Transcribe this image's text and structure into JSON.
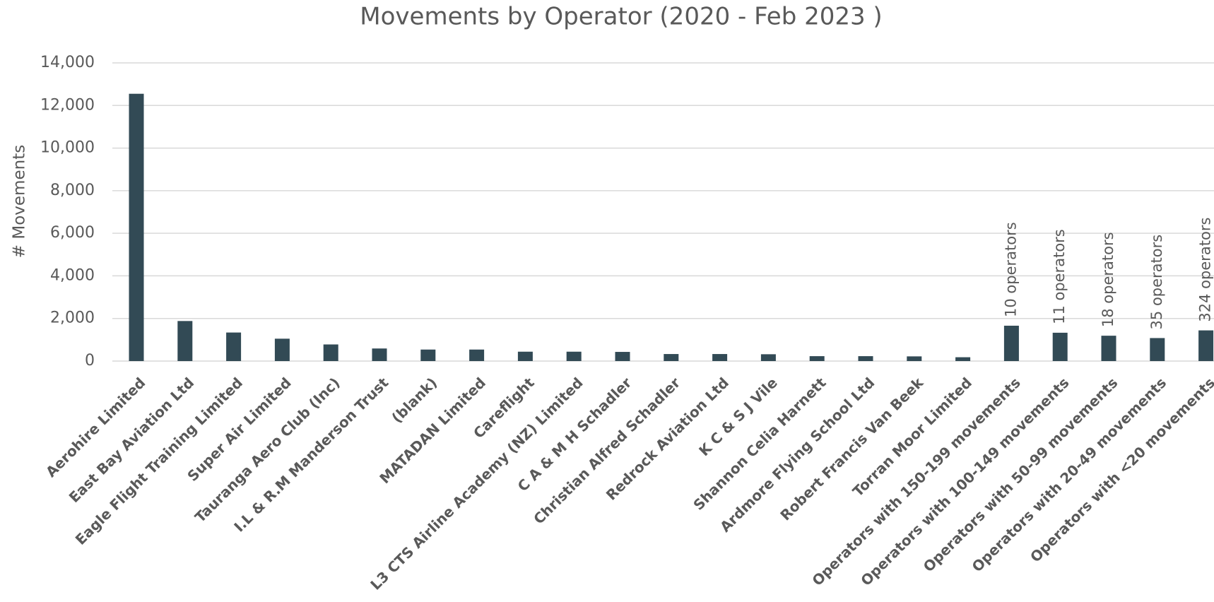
{
  "chart_data": {
    "type": "bar",
    "title": "Movements by Operator (2020 - Feb 2023 )",
    "y_label": "# Movements",
    "categories": [
      "Aerohire Limited",
      "East Bay Aviation Ltd",
      "Eagle Flight Training Limited",
      "Super Air Limited",
      "Tauranga Aero Club (Inc)",
      "I.L & R.M Manderson Trust",
      "(blank)",
      "MATADAN Limited",
      "Careflight",
      "L3 CTS Airline Academy (NZ) Limited",
      "C A & M H Schadler",
      "Christian Alfred Schadler",
      "Redrock Aviation Ltd",
      "K C & S J Vile",
      "Shannon Celia Harnett",
      "Ardmore Flying School Ltd",
      "Robert Francis Van Beek",
      "Torran Moor Limited",
      "Operators with 150-199 movements",
      "Operators with 100-149 movements",
      "Operators with 50-99 movements",
      "Operators with 20-49 movements",
      "Operators with <20 movements"
    ],
    "values": [
      12550,
      1880,
      1340,
      1050,
      780,
      590,
      540,
      540,
      440,
      440,
      430,
      330,
      330,
      320,
      230,
      230,
      220,
      180,
      1660,
      1330,
      1190,
      1080,
      1440
    ],
    "annotations": [
      null,
      null,
      null,
      null,
      null,
      null,
      null,
      null,
      null,
      null,
      null,
      null,
      null,
      null,
      null,
      null,
      null,
      null,
      "10 operators",
      "11 operators",
      "18 operators",
      "35 operators",
      "324 operators"
    ],
    "color": "#324a55",
    "ylim": [
      0,
      14000
    ],
    "yticks": [
      0,
      {
        "value": 2000,
        "label": "2,000"
      },
      {
        "value": 4000,
        "label": "4,000"
      },
      {
        "value": 6000,
        "label": "6,000"
      },
      {
        "value": 8000,
        "label": "8,000"
      },
      {
        "value": 10000,
        "label": "10,000"
      },
      {
        "value": 12000,
        "label": "12,000"
      },
      {
        "value": 14000,
        "label": "14,000"
      }
    ],
    "grid": true
  }
}
